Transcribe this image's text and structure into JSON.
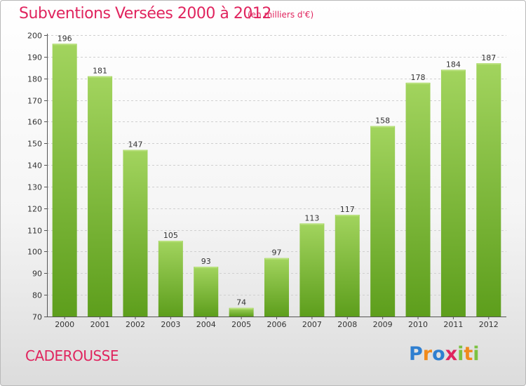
{
  "header": {
    "title": "Subventions Versées 2000 à 2012",
    "unit": "(en milliers d'€)"
  },
  "footer": {
    "commune": "CADEROUSSE",
    "logo_text": "Proxiti"
  },
  "colors": {
    "accent": "#e0245e",
    "bar_top": "#a2d45e",
    "bar_bottom": "#5d9e1c"
  },
  "chart_data": {
    "type": "bar",
    "title": "Subventions Versées 2000 à 2012",
    "subtitle": "(en milliers d'€)",
    "xlabel": "",
    "ylabel": "",
    "categories": [
      "2000",
      "2001",
      "2002",
      "2003",
      "2004",
      "2005",
      "2006",
      "2007",
      "2008",
      "2009",
      "2010",
      "2011",
      "2012"
    ],
    "values": [
      196,
      181,
      147,
      105,
      93,
      74,
      97,
      113,
      117,
      158,
      178,
      184,
      187
    ],
    "ylim": [
      70,
      200
    ],
    "yticks": [
      70,
      80,
      90,
      100,
      110,
      120,
      130,
      140,
      150,
      160,
      170,
      180,
      190,
      200
    ],
    "grid": "horizontal dashed",
    "legend": "none"
  }
}
